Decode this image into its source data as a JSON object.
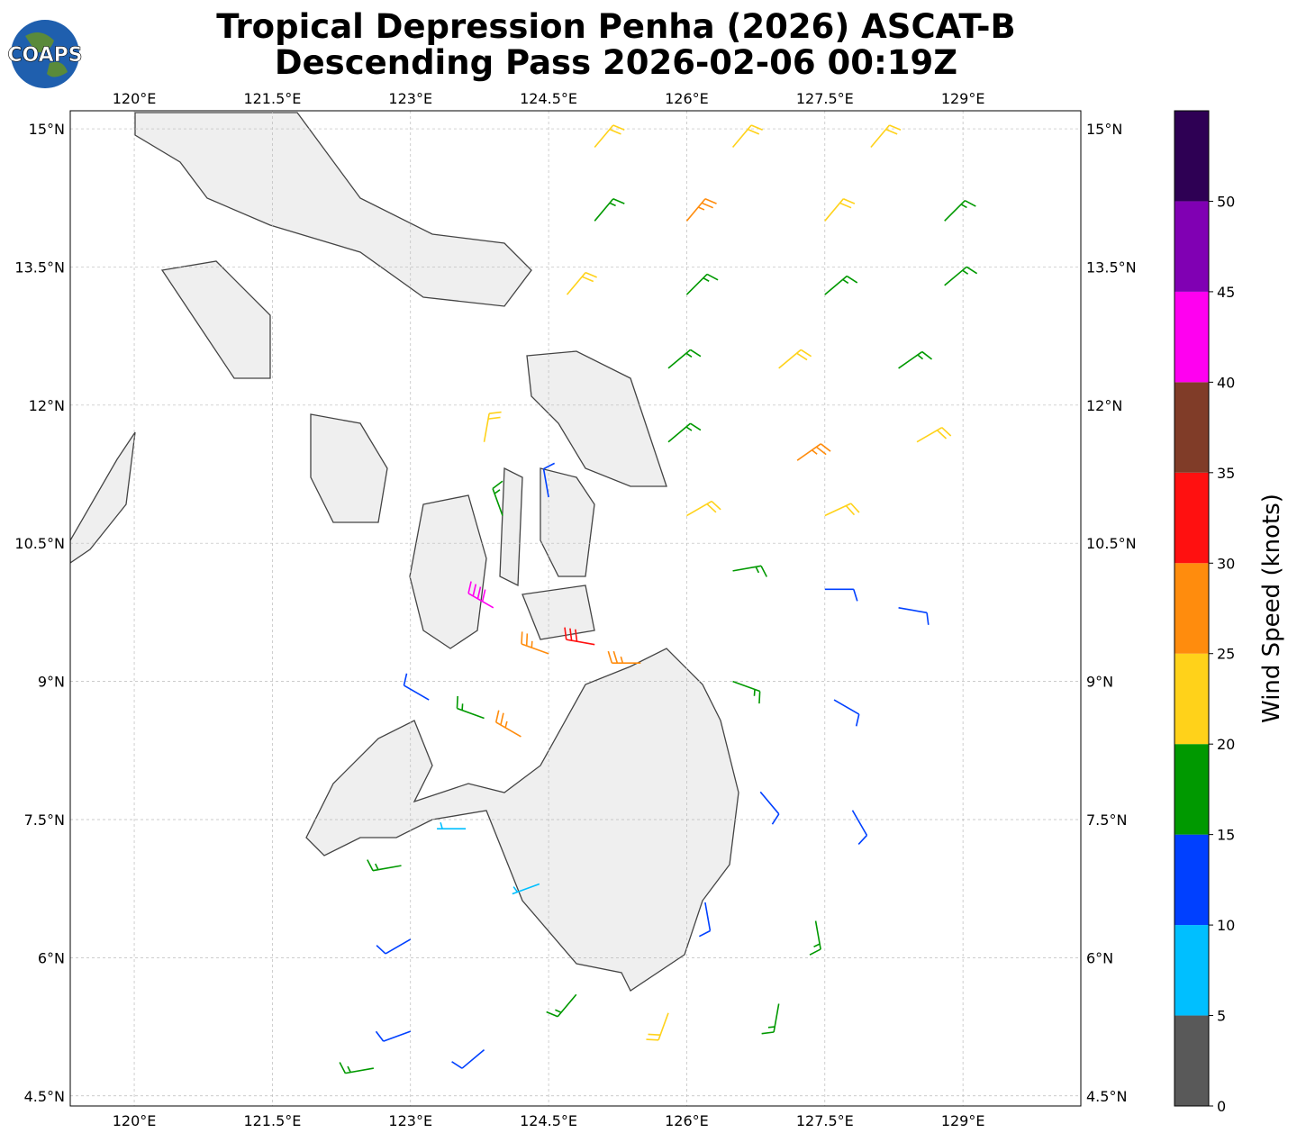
{
  "logo": "COAPS",
  "chart_data": {
    "type": "barbs",
    "title": [
      "Tropical Depression Penha (2026) ASCAT-B",
      "Descending Pass 2026-02-06 00:19Z"
    ],
    "xlim": [
      119.305,
      130.28
    ],
    "ylim": [
      4.39,
      15.196
    ],
    "xticks": [
      {
        "value": 120,
        "label": "120°E"
      },
      {
        "value": 121.5,
        "label": "121.5°E"
      },
      {
        "value": 123,
        "label": "123°E"
      },
      {
        "value": 124.5,
        "label": "124.5°E"
      },
      {
        "value": 126,
        "label": "126°E"
      },
      {
        "value": 127.5,
        "label": "127.5°E"
      },
      {
        "value": 129,
        "label": "129°E"
      }
    ],
    "yticks": [
      {
        "value": 4.5,
        "label": "4.5°N"
      },
      {
        "value": 6,
        "label": "6°N"
      },
      {
        "value": 7.5,
        "label": "7.5°N"
      },
      {
        "value": 9,
        "label": "9°N"
      },
      {
        "value": 10.5,
        "label": "10.5°N"
      },
      {
        "value": 12,
        "label": "12°N"
      },
      {
        "value": 13.5,
        "label": "13.5°N"
      },
      {
        "value": 15,
        "label": "15°N"
      }
    ],
    "grid": true,
    "barbs": {
      "lon": [
        125,
        126.5,
        128,
        125,
        126,
        127.5,
        128.8,
        124.7,
        126,
        127.5,
        128.8,
        125.8,
        127,
        128.3,
        125.8,
        127.2,
        128.5,
        126,
        127.5,
        123.8,
        124.5,
        124,
        123.9,
        124.5,
        125,
        125.5,
        126.5,
        127.5,
        128.3,
        126.5,
        127.6,
        126.8,
        127.8,
        126.2,
        127.4,
        127,
        125.8,
        124.8,
        123.8,
        123,
        122.6,
        123,
        122.9,
        123.6,
        124.4,
        123.2,
        123.8,
        124.2
      ],
      "lat": [
        14.8,
        14.8,
        14.8,
        14,
        14,
        14,
        14,
        13.2,
        13.2,
        13.2,
        13.3,
        12.4,
        12.4,
        12.4,
        11.6,
        11.4,
        11.6,
        10.8,
        10.8,
        11.6,
        11,
        10.8,
        9.8,
        9.3,
        9.4,
        9.2,
        10.2,
        10,
        9.8,
        9,
        8.8,
        7.8,
        7.6,
        6.6,
        6.4,
        5.5,
        5.4,
        5.6,
        5,
        5.2,
        4.8,
        6.2,
        7,
        7.4,
        6.8,
        8.8,
        8.6,
        8.4
      ],
      "speed": [
        22,
        22,
        22,
        17,
        27,
        22,
        17,
        22,
        17,
        17,
        17,
        17,
        22,
        17,
        17,
        27,
        22,
        22,
        22,
        22,
        12,
        17,
        42,
        27,
        32,
        27,
        17,
        12,
        12,
        17,
        12,
        12,
        12,
        12,
        17,
        17,
        22,
        17,
        12,
        12,
        17,
        12,
        17,
        7,
        7,
        12,
        17,
        27
      ],
      "direction": [
        40,
        40,
        40,
        40,
        40,
        40,
        45,
        40,
        45,
        50,
        50,
        50,
        50,
        55,
        50,
        55,
        60,
        60,
        65,
        10,
        350,
        340,
        300,
        290,
        280,
        270,
        80,
        90,
        100,
        110,
        120,
        140,
        150,
        170,
        170,
        190,
        200,
        220,
        230,
        250,
        260,
        240,
        260,
        270,
        250,
        300,
        290,
        300
      ]
    },
    "colorbar": {
      "label": "Wind Speed (knots)",
      "lim": [
        0,
        55
      ],
      "ticks": [
        0,
        5,
        10,
        15,
        20,
        25,
        30,
        35,
        40,
        45,
        50
      ],
      "bounds": [
        0,
        5,
        10,
        15,
        20,
        25,
        30,
        35,
        40,
        45,
        50,
        55
      ],
      "colors": [
        "#595959",
        "#00bfff",
        "#0040ff",
        "#009900",
        "#ffd21a",
        "#ff8c0d",
        "#ff1010",
        "#803c28",
        "#ff00f0",
        "#8000b3",
        "#2e0054"
      ]
    }
  }
}
